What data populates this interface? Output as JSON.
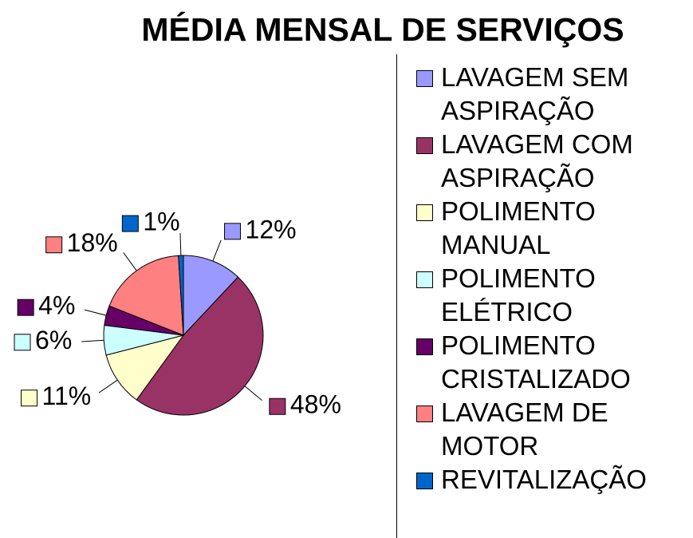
{
  "chart_data": {
    "type": "pie",
    "title": "MÉDIA MENSAL DE SERVIÇOS",
    "categories": [
      "LAVAGEM SEM ASPIRAÇÃO",
      "LAVAGEM COM ASPIRAÇÃO",
      "POLIMENTO MANUAL",
      "POLIMENTO ELÉTRICO",
      "POLIMENTO CRISTALIZADO",
      "LAVAGEM DE MOTOR",
      "REVITALIZAÇÃO"
    ],
    "values": [
      12,
      48,
      11,
      6,
      4,
      18,
      1
    ],
    "value_labels": [
      "12%",
      "48%",
      "11%",
      "6%",
      "4%",
      "18%",
      "1%"
    ],
    "colors": [
      "#9999ff",
      "#993366",
      "#ffffcc",
      "#ccffff",
      "#660066",
      "#ff8080",
      "#0066cc"
    ],
    "legend": "right"
  }
}
